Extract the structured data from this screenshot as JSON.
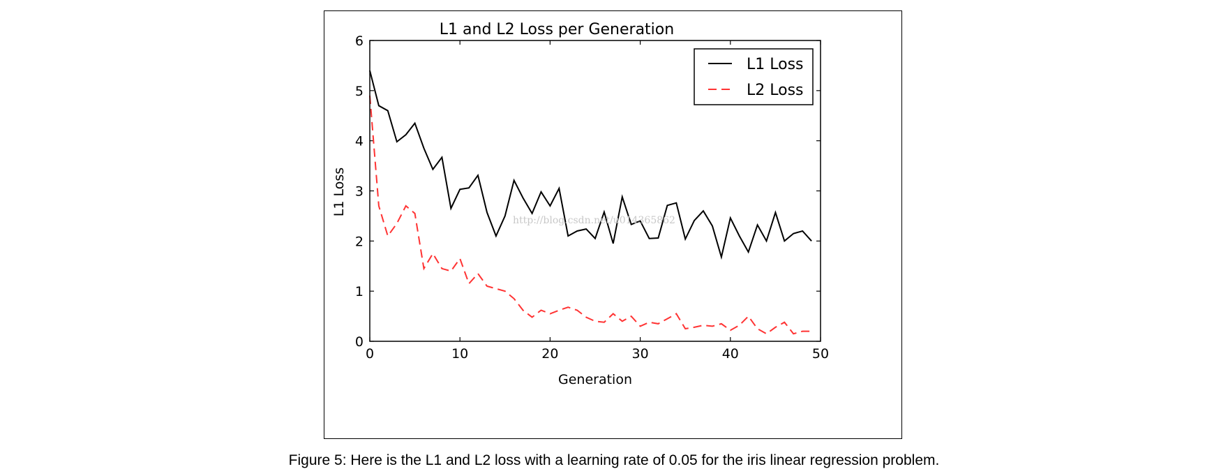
{
  "chart_data": {
    "type": "line",
    "title": "L1 and L2 Loss per Generation",
    "xlabel": "Generation",
    "ylabel": "L1 Loss",
    "xlim": [
      0,
      50
    ],
    "ylim": [
      0,
      6
    ],
    "xticks": [
      0,
      10,
      20,
      30,
      40,
      50
    ],
    "yticks": [
      0,
      1,
      2,
      3,
      4,
      5,
      6
    ],
    "grid": false,
    "legend_position": "upper right",
    "series": [
      {
        "name": "L1 Loss",
        "color": "#000000",
        "style": "solid",
        "x": [
          0,
          1,
          2,
          3,
          4,
          5,
          6,
          7,
          8,
          9,
          10,
          11,
          12,
          13,
          14,
          15,
          16,
          17,
          18,
          19,
          20,
          21,
          22,
          23,
          24,
          25,
          26,
          27,
          28,
          29,
          30,
          31,
          32,
          33,
          34,
          35,
          36,
          37,
          38,
          39,
          40,
          41,
          42,
          43,
          44,
          45,
          46,
          47,
          48,
          49
        ],
        "values": [
          5.4,
          4.7,
          4.6,
          3.98,
          4.12,
          4.35,
          3.85,
          3.43,
          3.67,
          2.65,
          3.03,
          3.06,
          3.31,
          2.57,
          2.1,
          2.5,
          3.21,
          2.86,
          2.55,
          2.98,
          2.7,
          3.05,
          2.1,
          2.2,
          2.24,
          2.05,
          2.58,
          1.95,
          2.88,
          2.33,
          2.4,
          2.05,
          2.06,
          2.71,
          2.76,
          2.04,
          2.41,
          2.6,
          2.3,
          1.68,
          2.46,
          2.1,
          1.78,
          2.32,
          2.0,
          2.57,
          2.0,
          2.15,
          2.2,
          2.0
        ]
      },
      {
        "name": "L2 Loss",
        "color": "#ff3333",
        "style": "dashed",
        "x": [
          0,
          1,
          2,
          3,
          4,
          5,
          6,
          7,
          8,
          9,
          10,
          11,
          12,
          13,
          14,
          15,
          16,
          17,
          18,
          19,
          20,
          21,
          22,
          23,
          24,
          25,
          26,
          27,
          28,
          29,
          30,
          31,
          32,
          33,
          34,
          35,
          36,
          37,
          38,
          39,
          40,
          41,
          42,
          43,
          44,
          45,
          46,
          47,
          48,
          49
        ],
        "values": [
          4.9,
          2.7,
          2.1,
          2.35,
          2.7,
          2.55,
          1.45,
          1.75,
          1.45,
          1.4,
          1.65,
          1.15,
          1.35,
          1.1,
          1.05,
          1.0,
          0.85,
          0.62,
          0.48,
          0.62,
          0.55,
          0.62,
          0.68,
          0.62,
          0.48,
          0.4,
          0.38,
          0.55,
          0.4,
          0.5,
          0.3,
          0.38,
          0.35,
          0.45,
          0.55,
          0.25,
          0.28,
          0.32,
          0.3,
          0.35,
          0.22,
          0.32,
          0.5,
          0.25,
          0.15,
          0.28,
          0.38,
          0.15,
          0.2,
          0.2
        ]
      }
    ]
  },
  "watermark": "http://blog.csdn.net/u014365862",
  "caption": "Figure 5: Here is the L1 and L2 loss with a learning rate of 0.05 for the iris linear regression problem."
}
